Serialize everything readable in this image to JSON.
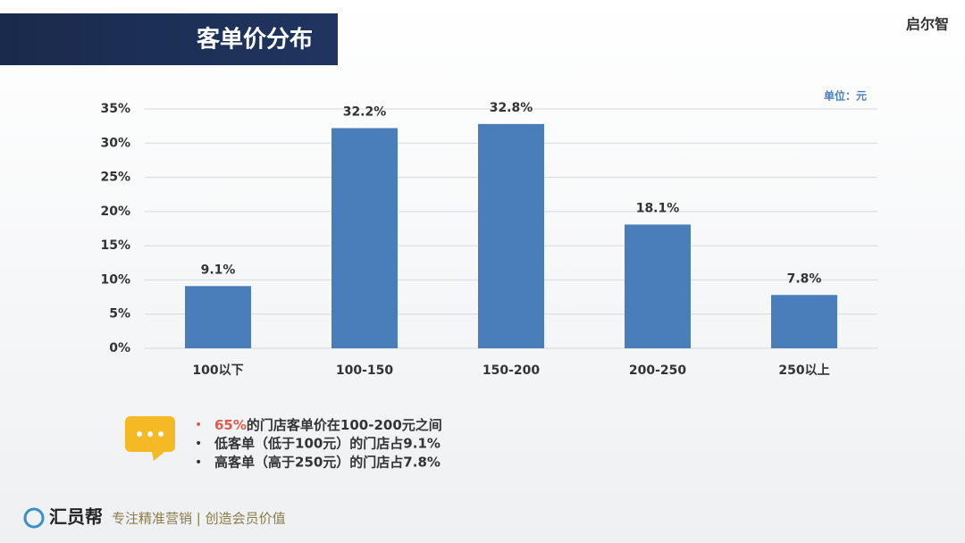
{
  "header": {
    "title": "客单价分布",
    "logo": "启尔智"
  },
  "chart_data": {
    "type": "bar",
    "unit_label": "单位：元",
    "categories": [
      "100以下",
      "100-150",
      "150-200",
      "200-250",
      "250以上"
    ],
    "values": [
      9.1,
      32.2,
      32.8,
      18.1,
      7.8
    ],
    "value_labels": [
      "9.1%",
      "32.2%",
      "32.8%",
      "18.1%",
      "7.8%"
    ],
    "color": "#4a7ebb",
    "ylim": [
      0,
      35
    ],
    "yticks": [
      {
        "value": 0,
        "label": "0%"
      },
      {
        "value": 5,
        "label": "5%"
      },
      {
        "value": 10,
        "label": "10%"
      },
      {
        "value": 15,
        "label": "15%"
      },
      {
        "value": 20,
        "label": "20%"
      },
      {
        "value": 25,
        "label": "25%"
      },
      {
        "value": 30,
        "label": "30%"
      },
      {
        "value": 35,
        "label": "35%"
      }
    ],
    "grid": true
  },
  "notes": [
    {
      "highlight": "65%",
      "text": "的门店客单价在100-200元之间"
    },
    {
      "text": "低客单（低于100元）的门店占9.1%"
    },
    {
      "text": "高客单（高于250元）的门店占7.8%"
    }
  ],
  "footer": {
    "brand": "汇员帮",
    "slogan": "专注精准营销 | 创造会员价值"
  }
}
